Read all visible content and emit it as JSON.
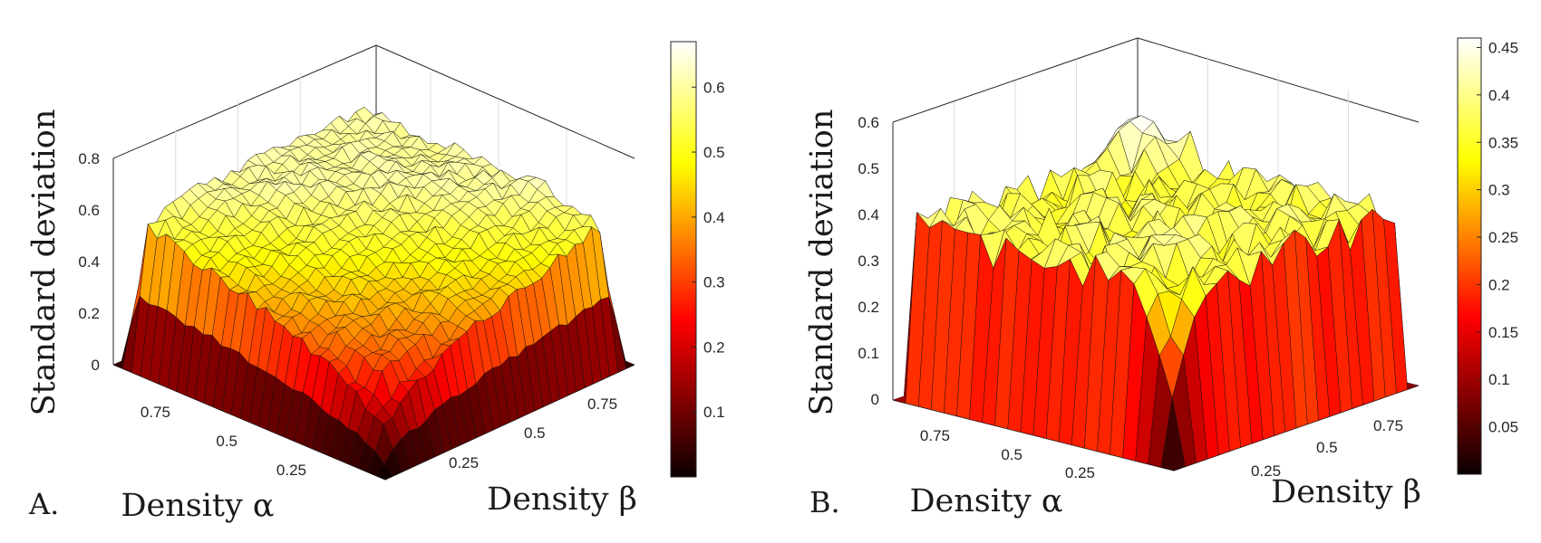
{
  "figure": {
    "panels": [
      {
        "panel_label": "A.",
        "colorbar_ticks": [
          "0.1",
          "0.2",
          "0.3",
          "0.4",
          "0.5",
          "0.6"
        ]
      },
      {
        "panel_label": "B.",
        "colorbar_ticks": [
          "0.05",
          "0.1",
          "0.15",
          "0.2",
          "0.25",
          "0.3",
          "0.35",
          "0.4",
          "0.45"
        ]
      }
    ]
  },
  "chart_data": [
    {
      "type": "surface",
      "panel_label": "A.",
      "colormap": "hot",
      "xlabel": "Density α",
      "ylabel": "Density β",
      "zlabel": "Standard deviation",
      "xlim": [
        0,
        1
      ],
      "ylim": [
        0,
        1
      ],
      "zlim": [
        0,
        0.8
      ],
      "x_ticks": [
        "0.25",
        "0.5",
        "0.75"
      ],
      "y_ticks": [
        "0.25",
        "0.5",
        "0.75"
      ],
      "z_ticks": [
        "0",
        "0.2",
        "0.4",
        "0.6",
        "0.8"
      ],
      "clim": [
        0,
        0.67
      ],
      "grid": true,
      "grid_resolution": 40,
      "surface_description": "≈0 along the α=0/1 and β=0/1 edges with steep walls, plateau ≈0.55–0.6 near α=β=1, valley along the α and β axes dipping to ≈0 at α=β=0",
      "peak_z": 0.6
    },
    {
      "type": "surface",
      "panel_label": "B.",
      "colormap": "hot",
      "xlabel": "Density α",
      "ylabel": "Density β",
      "zlabel": "Standard deviation",
      "xlim": [
        0,
        1
      ],
      "ylim": [
        0,
        1
      ],
      "zlim": [
        0,
        0.6
      ],
      "x_ticks": [
        "0.25",
        "0.5",
        "0.75"
      ],
      "y_ticks": [
        "0.25",
        "0.5",
        "0.75"
      ],
      "z_ticks": [
        "0",
        "0.1",
        "0.2",
        "0.3",
        "0.4",
        "0.5",
        "0.6"
      ],
      "clim": [
        0,
        0.46
      ],
      "grid": true,
      "grid_resolution": 22,
      "surface_description": "vertical walls at the α=0/1 and β=0/1 edges, noisy plateau ≈0.35–0.45 with a bump to ≈0.5 near α=β=1, sharp dip toward 0 near α=β=0",
      "peak_z": 0.5
    }
  ]
}
